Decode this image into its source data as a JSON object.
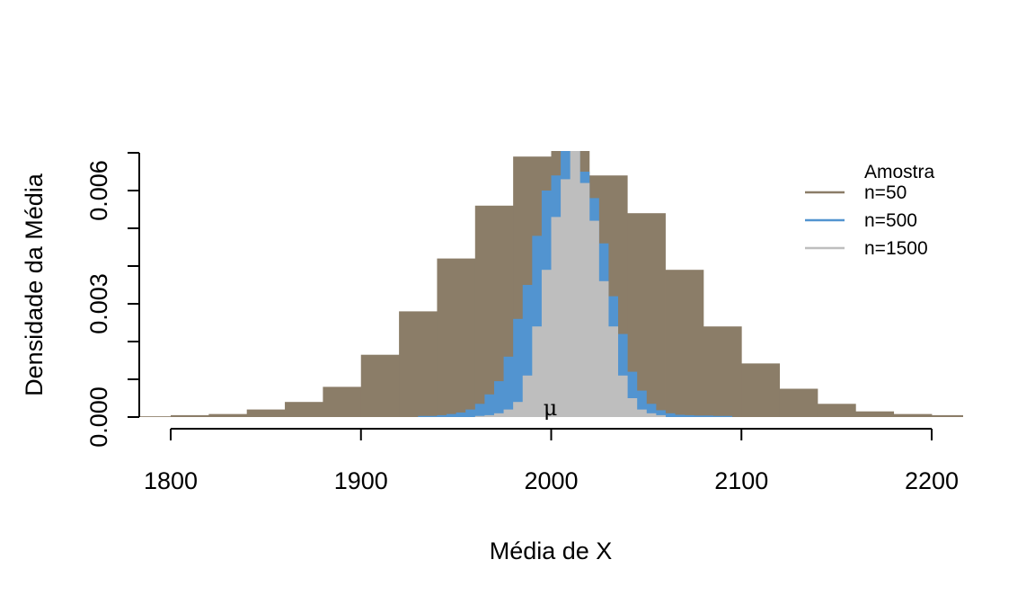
{
  "chart_data": {
    "type": "bar",
    "xlabel": "Média de X",
    "ylabel": "Densidade da Média",
    "xlim": [
      1785,
      2218
    ],
    "ylim": [
      0,
      0.007
    ],
    "x_ticks": [
      1800,
      1900,
      2000,
      2100,
      2200
    ],
    "x_tick_labels": [
      "1800",
      "1900",
      "2000",
      "2100",
      "2200"
    ],
    "y_ticks": [
      0,
      0.001,
      0.002,
      0.003,
      0.004,
      0.005,
      0.006,
      0.007
    ],
    "y_tick_labels": [
      "0.000",
      "",
      "",
      "0.003",
      "",
      "",
      "0.006",
      ""
    ],
    "annotation": {
      "text": "μ",
      "x": 2000,
      "y": 0
    },
    "legend": {
      "title": "Amostra",
      "position": "top-right"
    },
    "series": [
      {
        "name": "n=50",
        "color": "#8b7d68",
        "bin_width": 20,
        "bins": [
          {
            "x0": 1780,
            "y": 2e-05
          },
          {
            "x0": 1800,
            "y": 5e-05
          },
          {
            "x0": 1820,
            "y": 8e-05
          },
          {
            "x0": 1840,
            "y": 0.0002
          },
          {
            "x0": 1860,
            "y": 0.0004
          },
          {
            "x0": 1880,
            "y": 0.0008
          },
          {
            "x0": 1900,
            "y": 0.00165
          },
          {
            "x0": 1920,
            "y": 0.0028
          },
          {
            "x0": 1940,
            "y": 0.0042
          },
          {
            "x0": 1960,
            "y": 0.0056
          },
          {
            "x0": 1980,
            "y": 0.0069
          },
          {
            "x0": 2000,
            "y": 0.00705
          },
          {
            "x0": 2020,
            "y": 0.0064
          },
          {
            "x0": 2040,
            "y": 0.0054
          },
          {
            "x0": 2060,
            "y": 0.0039
          },
          {
            "x0": 2080,
            "y": 0.0024
          },
          {
            "x0": 2100,
            "y": 0.00142
          },
          {
            "x0": 2120,
            "y": 0.00075
          },
          {
            "x0": 2140,
            "y": 0.00035
          },
          {
            "x0": 2160,
            "y": 0.00015
          },
          {
            "x0": 2180,
            "y": 8e-05
          },
          {
            "x0": 2200,
            "y": 5e-05
          }
        ]
      },
      {
        "name": "n=500",
        "color": "#5294d0",
        "bin_width": 5,
        "bins": [
          {
            "x0": 1930,
            "y": 3e-05
          },
          {
            "x0": 1935,
            "y": 3e-05
          },
          {
            "x0": 1940,
            "y": 5e-05
          },
          {
            "x0": 1945,
            "y": 8e-05
          },
          {
            "x0": 1950,
            "y": 0.00012
          },
          {
            "x0": 1955,
            "y": 0.0002
          },
          {
            "x0": 1960,
            "y": 0.00035
          },
          {
            "x0": 1965,
            "y": 0.0006
          },
          {
            "x0": 1970,
            "y": 0.00095
          },
          {
            "x0": 1975,
            "y": 0.0016
          },
          {
            "x0": 1980,
            "y": 0.0026
          },
          {
            "x0": 1985,
            "y": 0.0035
          },
          {
            "x0": 1990,
            "y": 0.0048
          },
          {
            "x0": 1995,
            "y": 0.006
          },
          {
            "x0": 2000,
            "y": 0.0064
          },
          {
            "x0": 2005,
            "y": 0.0071
          },
          {
            "x0": 2010,
            "y": 0.0071
          },
          {
            "x0": 2015,
            "y": 0.0065
          },
          {
            "x0": 2020,
            "y": 0.0058
          },
          {
            "x0": 2025,
            "y": 0.0046
          },
          {
            "x0": 2030,
            "y": 0.0032
          },
          {
            "x0": 2035,
            "y": 0.0022
          },
          {
            "x0": 2040,
            "y": 0.0012
          },
          {
            "x0": 2045,
            "y": 0.0007
          },
          {
            "x0": 2050,
            "y": 0.00035
          },
          {
            "x0": 2055,
            "y": 0.00018
          },
          {
            "x0": 2060,
            "y": 0.0001
          },
          {
            "x0": 2065,
            "y": 6e-05
          },
          {
            "x0": 2070,
            "y": 5e-05
          },
          {
            "x0": 2075,
            "y": 4e-05
          },
          {
            "x0": 2080,
            "y": 4e-05
          },
          {
            "x0": 2085,
            "y": 3e-05
          },
          {
            "x0": 2090,
            "y": 3e-05
          }
        ]
      },
      {
        "name": "n=1500",
        "color": "#bebebe",
        "bin_width": 5,
        "bins": [
          {
            "x0": 1960,
            "y": 3e-05
          },
          {
            "x0": 1965,
            "y": 5e-05
          },
          {
            "x0": 1970,
            "y": 0.0001
          },
          {
            "x0": 1975,
            "y": 0.0002
          },
          {
            "x0": 1980,
            "y": 0.0004
          },
          {
            "x0": 1985,
            "y": 0.0011
          },
          {
            "x0": 1990,
            "y": 0.0024
          },
          {
            "x0": 1995,
            "y": 0.0039
          },
          {
            "x0": 2000,
            "y": 0.0053
          },
          {
            "x0": 2005,
            "y": 0.0063
          },
          {
            "x0": 2010,
            "y": 0.0071
          },
          {
            "x0": 2015,
            "y": 0.0062
          },
          {
            "x0": 2020,
            "y": 0.0052
          },
          {
            "x0": 2025,
            "y": 0.0036
          },
          {
            "x0": 2030,
            "y": 0.0024
          },
          {
            "x0": 2035,
            "y": 0.0011
          },
          {
            "x0": 2040,
            "y": 0.0005
          },
          {
            "x0": 2045,
            "y": 0.0002
          },
          {
            "x0": 2050,
            "y": 0.0001
          },
          {
            "x0": 2055,
            "y": 5e-05
          }
        ]
      }
    ]
  }
}
